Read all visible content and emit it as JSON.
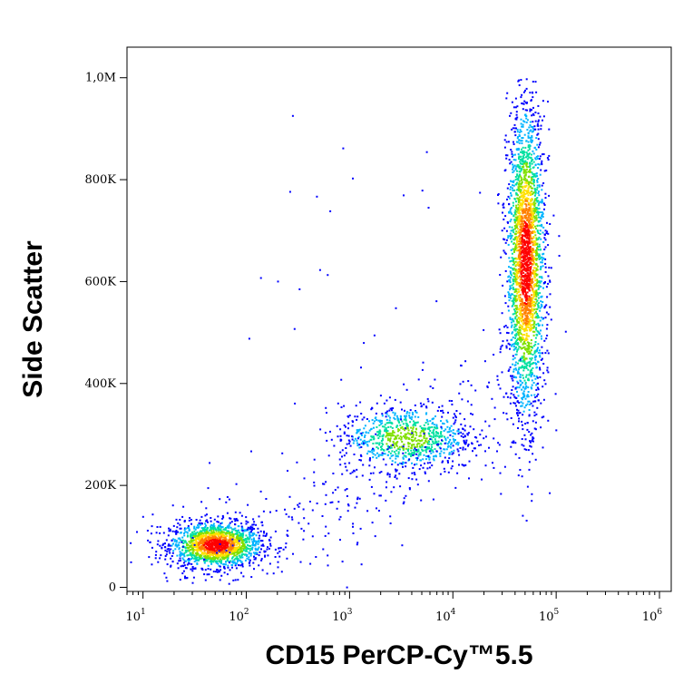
{
  "chart_data": {
    "type": "scatter",
    "style": "flow-cytometry density dot plot",
    "xlabel": "CD15 PerCP-Cy™5.5",
    "ylabel": "Side Scatter",
    "x_scale": "log",
    "xlim": [
      7,
      1300000
    ],
    "ylim": [
      -8000,
      1060000
    ],
    "x_ticks": [
      {
        "base": "10",
        "exp": "1",
        "value": 10
      },
      {
        "base": "10",
        "exp": "2",
        "value": 100
      },
      {
        "base": "10",
        "exp": "3",
        "value": 1000
      },
      {
        "base": "10",
        "exp": "4",
        "value": 10000
      },
      {
        "base": "10",
        "exp": "5",
        "value": 100000
      },
      {
        "base": "10",
        "exp": "6",
        "value": 1000000
      }
    ],
    "y_ticks": [
      {
        "label": "0",
        "value": 0
      },
      {
        "label": "200K",
        "value": 200000
      },
      {
        "label": "400K",
        "value": 400000
      },
      {
        "label": "600K",
        "value": 600000
      },
      {
        "label": "800K",
        "value": 800000
      },
      {
        "label": "1,0M",
        "value": 1000000
      }
    ],
    "populations": [
      {
        "center_x": 50,
        "center_y": 85000,
        "spread_log_x": 0.22,
        "spread_y": 22000,
        "count": 1600,
        "peak_density": "high"
      },
      {
        "center_x": 3500,
        "center_y": 295000,
        "spread_log_x": 0.32,
        "spread_y": 32000,
        "count": 850,
        "peak_density": "medium"
      },
      {
        "center_x": 50000,
        "center_y": 640000,
        "spread_log_x": 0.09,
        "spread_y": 150000,
        "count": 2600,
        "peak_density": "high"
      }
    ],
    "grid": false,
    "colormap": [
      "#0000ff",
      "#00b4ff",
      "#00e0a0",
      "#7fe000",
      "#ffe000",
      "#ff8000",
      "#ff0000"
    ]
  }
}
